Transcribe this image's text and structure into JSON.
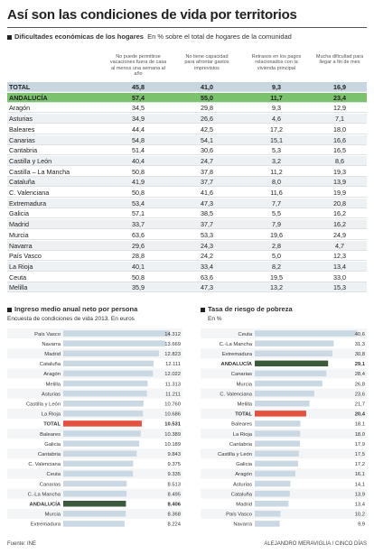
{
  "title": "Así son las condiciones de vida por territorios",
  "section1": {
    "label": "Dificultades económicas de los hogares",
    "unit": "En % sobre el total de hogares de la comunidad"
  },
  "table": {
    "columns": [
      "No puede permitirse vacaciones fuera de casa al menos una semana al año",
      "No tiene capacidad para afrontar gastos imprevistos",
      "Retrasos en los pagos relacionados con la vivienda principal",
      "Mucha dificultad para llegar a fin de mes"
    ],
    "rows": [
      {
        "name": "TOTAL",
        "values": [
          "45,8",
          "41,0",
          "9,3",
          "16,9"
        ],
        "kind": "total"
      },
      {
        "name": "ANDALUCÍA",
        "values": [
          "57,4",
          "55,0",
          "11,7",
          "23,4"
        ],
        "kind": "andalucia"
      },
      {
        "name": "Aragón",
        "values": [
          "34,5",
          "29,8",
          "9,3",
          "12,9"
        ]
      },
      {
        "name": "Asturias",
        "values": [
          "34,9",
          "26,6",
          "4,6",
          "7,1"
        ]
      },
      {
        "name": "Baleares",
        "values": [
          "44,4",
          "42,5",
          "17,2",
          "18,0"
        ]
      },
      {
        "name": "Canarias",
        "values": [
          "54,8",
          "54,1",
          "15,1",
          "16,6"
        ]
      },
      {
        "name": "Cantabria",
        "values": [
          "51,4",
          "30,6",
          "5,3",
          "16,5"
        ]
      },
      {
        "name": "Castilla y León",
        "values": [
          "40,4",
          "24,7",
          "3,2",
          "8,6"
        ]
      },
      {
        "name": "Castilla – La Mancha",
        "values": [
          "50,8",
          "37,8",
          "11,2",
          "19,3"
        ]
      },
      {
        "name": "Cataluña",
        "values": [
          "41,9",
          "37,7",
          "8,0",
          "13,9"
        ]
      },
      {
        "name": "C. Valenciana",
        "values": [
          "50,8",
          "41,6",
          "11,6",
          "19,9"
        ]
      },
      {
        "name": "Extremadura",
        "values": [
          "53,4",
          "47,3",
          "7,7",
          "20,8"
        ]
      },
      {
        "name": "Galicia",
        "values": [
          "57,1",
          "38,5",
          "5,5",
          "16,2"
        ]
      },
      {
        "name": "Madrid",
        "values": [
          "33,7",
          "37,7",
          "7,9",
          "16,2"
        ]
      },
      {
        "name": "Murcia",
        "values": [
          "63,6",
          "53,3",
          "19,6",
          "24,9"
        ]
      },
      {
        "name": "Navarra",
        "values": [
          "29,6",
          "24,3",
          "2,8",
          "4,7"
        ]
      },
      {
        "name": "País Vasco",
        "values": [
          "28,8",
          "24,2",
          "5,0",
          "12,3"
        ]
      },
      {
        "name": "La Rioja",
        "values": [
          "40,1",
          "33,4",
          "8,2",
          "13,4"
        ]
      },
      {
        "name": "Ceuta",
        "values": [
          "50,8",
          "63,6",
          "19,5",
          "33,0"
        ]
      },
      {
        "name": "Melilla",
        "values": [
          "35,9",
          "47,3",
          "13,2",
          "15,3"
        ]
      }
    ]
  },
  "chart_data": [
    {
      "type": "bar",
      "title": "Ingreso medio anual neto por persona",
      "subtitle": "Encuesta de condiciones de vida 2013. En euros",
      "categories": [
        "País Vasco",
        "Navarra",
        "Madrid",
        "Cataluña",
        "Aragón",
        "Melilla",
        "Asturias",
        "Castilla y León",
        "La Rioja",
        "TOTAL",
        "Baleares",
        "Galicia",
        "Cantabria",
        "C. Valenciana",
        "Ceuta",
        "Canarias",
        "C.-La Mancha",
        "ANDALUCÍA",
        "Murcia",
        "Extremadura"
      ],
      "values": [
        14312,
        13669,
        12823,
        12111,
        12022,
        11313,
        11211,
        10760,
        10686,
        10531,
        10389,
        10189,
        9843,
        9375,
        9335,
        8513,
        8495,
        8406,
        8368,
        8224
      ],
      "labels": [
        "14.312",
        "13.669",
        "12.823",
        "12.111",
        "12.022",
        "11.313",
        "11.211",
        "10.760",
        "10.686",
        "10.531",
        "10.389",
        "10.189",
        "9.843",
        "9.375",
        "9.335",
        "8.513",
        "8.495",
        "8.406",
        "8.368",
        "8.224"
      ],
      "xlim": [
        0,
        15500
      ],
      "highlight": {
        "TOTAL": "#e2523f",
        "ANDALUCÍA": "#3b5a3b"
      }
    },
    {
      "type": "bar",
      "title": "Tasa de riesgo de pobreza",
      "subtitle": "En %",
      "categories": [
        "Ceuta",
        "C.-La Mancha",
        "Extremadura",
        "ANDALUCÍA",
        "Canarias",
        "Murcia",
        "C. Valenciana",
        "Melilla",
        "TOTAL",
        "Baleares",
        "La Rioja",
        "Cantabria",
        "Castilla y León",
        "Galicia",
        "Aragón",
        "Asturias",
        "Cataluña",
        "Madrid",
        "País Vasco",
        "Navarra"
      ],
      "values": [
        40.6,
        31.3,
        30.8,
        29.1,
        28.4,
        26.8,
        23.6,
        21.7,
        20.4,
        18.1,
        18.0,
        17.9,
        17.5,
        17.2,
        16.1,
        14.1,
        13.9,
        13.4,
        10.2,
        9.9
      ],
      "labels": [
        "40,6",
        "31,3",
        "30,8",
        "29,1",
        "28,4",
        "26,8",
        "23,6",
        "21,7",
        "20,4",
        "18,1",
        "18,0",
        "17,9",
        "17,5",
        "17,2",
        "16,1",
        "14,1",
        "13,9",
        "13,4",
        "10,2",
        "9,9"
      ],
      "xlim": [
        0,
        43
      ],
      "highlight": {
        "TOTAL": "#e2523f",
        "ANDALUCÍA": "#3b5a3b"
      }
    }
  ],
  "colors": {
    "bar": "#c9d8e2",
    "bar_alt": "#eef1f4",
    "total": "#e2523f",
    "andalucia": "#3b5a3b",
    "andalucia_row": "#7ac26b"
  },
  "footer": {
    "source": "Fuente: INE",
    "credit": "ALEJANDRO MERAVIGLIA / CINCO DÍAS"
  }
}
